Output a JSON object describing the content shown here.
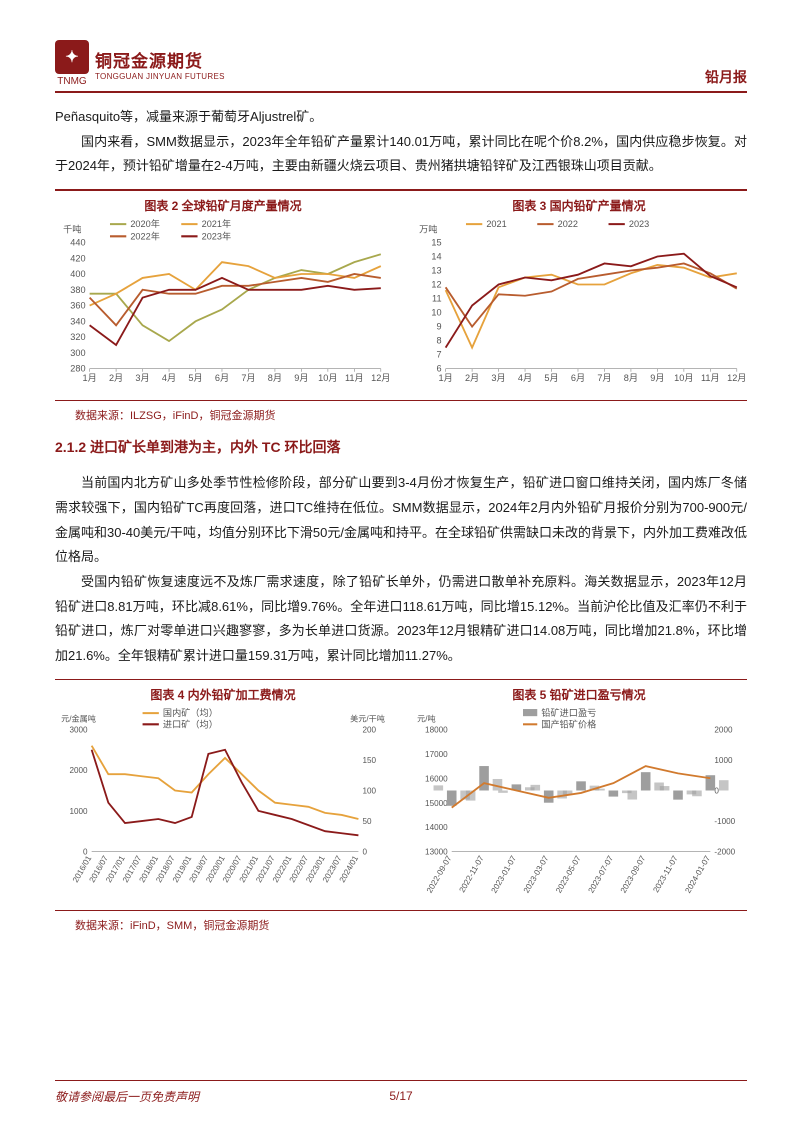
{
  "header": {
    "brand_cn": "铜冠金源期货",
    "brand_en": "TONGGUAN JINYUAN FUTURES",
    "tnmg": "TNMG",
    "report_type": "铅月报"
  },
  "intro_p1": "Peñasquito等，减量来源于葡萄牙Aljustrel矿。",
  "intro_p2": "国内来看，SMM数据显示，2023年全年铅矿产量累计140.01万吨，累计同比在呢个价8.2%，国内供应稳步恢复。对于2024年，预计铅矿增量在2-4万吨，主要由新疆火烧云项目、贵州猪拱塘铅锌矿及江西银珠山项目贡献。",
  "chart2": {
    "title": "图表 2 全球铅矿月度产量情况",
    "y_label": "千吨",
    "legend": [
      "2020年",
      "2021年",
      "2022年",
      "2023年"
    ],
    "legend_colors": [
      "#a8a84d",
      "#e6a23c",
      "#b85c2e",
      "#8b1a1a"
    ],
    "x_labels": [
      "1月",
      "2月",
      "3月",
      "4月",
      "5月",
      "6月",
      "7月",
      "8月",
      "9月",
      "10月",
      "11月",
      "12月"
    ],
    "y_min": 280,
    "y_max": 440,
    "y_step": 20,
    "series": {
      "2020": [
        375,
        375,
        335,
        315,
        340,
        355,
        380,
        395,
        405,
        400,
        415,
        425
      ],
      "2021": [
        360,
        375,
        395,
        400,
        380,
        415,
        410,
        395,
        400,
        400,
        395,
        410
      ],
      "2022": [
        370,
        335,
        380,
        375,
        375,
        385,
        385,
        390,
        395,
        390,
        400,
        395
      ],
      "2023": [
        335,
        310,
        370,
        380,
        380,
        395,
        380,
        380,
        380,
        385,
        380,
        382
      ]
    },
    "bg": "#ffffff",
    "font_size": 9
  },
  "chart3": {
    "title": "图表 3  国内铅矿产量情况",
    "y_label": "万吨",
    "legend": [
      "2021",
      "2022",
      "2023"
    ],
    "legend_colors": [
      "#e6a23c",
      "#b85c2e",
      "#8b1a1a"
    ],
    "x_labels": [
      "1月",
      "2月",
      "3月",
      "4月",
      "5月",
      "6月",
      "7月",
      "8月",
      "9月",
      "10月",
      "11月",
      "12月"
    ],
    "y_min": 6,
    "y_max": 15,
    "y_step": 1,
    "series": {
      "2021": [
        11.6,
        7.5,
        11.8,
        12.5,
        12.7,
        12.0,
        12.0,
        12.8,
        13.4,
        13.2,
        12.5,
        12.8
      ],
      "2022": [
        11.8,
        9.0,
        11.3,
        11.2,
        11.5,
        12.4,
        12.7,
        13.0,
        13.2,
        13.5,
        12.8,
        11.7
      ],
      "2023": [
        7.5,
        10.5,
        12.0,
        12.5,
        12.3,
        12.7,
        13.5,
        13.3,
        14.0,
        14.2,
        12.6,
        11.8
      ]
    },
    "bg": "#ffffff",
    "font_size": 9
  },
  "source1": "数据来源：ILZSG，iFinD，铜冠金源期货",
  "section_212": "2.1.2   进口矿长单到港为主，内外 TC  环比回落",
  "p212_1": "当前国内北方矿山多处季节性检修阶段，部分矿山要到3-4月份才恢复生产，铅矿进口窗口维持关闭，国内炼厂冬储需求较强下，国内铅矿TC再度回落，进口TC维持在低位。SMM数据显示，2024年2月内外铅矿月报价分别为700-900元/金属吨和30-40美元/干吨，均值分别环比下滑50元/金属吨和持平。在全球铅矿供需缺口未改的背景下，内外加工费难改低位格局。",
  "p212_2": "受国内铅矿恢复速度远不及炼厂需求速度，除了铅矿长单外，仍需进口散单补充原料。海关数据显示，2023年12月铅矿进口8.81万吨，环比减8.61%，同比增9.76%。全年进口118.61万吨，同比增15.12%。当前沪伦比值及汇率仍不利于铅矿进口，炼厂对零单进口兴趣寥寥，多为长单进口货源。2023年12月银精矿进口14.08万吨，同比增加21.8%，环比增加21.6%。全年银精矿累计进口量159.31万吨，累计同比增加11.27%。",
  "chart4": {
    "title": "图表 4  内外铅矿加工费情况",
    "y_label_left": "元/金属吨",
    "y_label_right": "美元/干吨",
    "legend": [
      "国内矿（均）",
      "进口矿（均）"
    ],
    "legend_colors": [
      "#e6a23c",
      "#8b1a1a"
    ],
    "x_labels": [
      "2016/01",
      "2016/07",
      "2017/01",
      "2017/07",
      "2018/01",
      "2018/07",
      "2019/01",
      "2019/07",
      "2020/01",
      "2020/07",
      "2021/01",
      "2021/07",
      "2022/01",
      "2022/07",
      "2023/01",
      "2023/07",
      "2024/01"
    ],
    "y_left_min": 0,
    "y_left_max": 3000,
    "y_left_step": 1000,
    "y_right_min": 0,
    "y_right_max": 200,
    "y_right_step": 50,
    "domestic": [
      2600,
      1900,
      1900,
      1850,
      1800,
      1500,
      1450,
      1900,
      2300,
      1900,
      1500,
      1200,
      1150,
      1100,
      950,
      900,
      800
    ],
    "import": [
      2500,
      1200,
      700,
      750,
      800,
      700,
      850,
      2400,
      2500,
      1700,
      1000,
      900,
      800,
      650,
      500,
      450,
      400
    ],
    "font_size": 8
  },
  "chart5": {
    "title": "图表 5  铅矿进口盈亏情况",
    "y_label_left": "元/吨",
    "legend": [
      "铅矿进口盈亏",
      "国产铅矿价格"
    ],
    "legend_colors": [
      "#9e9e9e",
      "#d17a2e"
    ],
    "x_labels": [
      "2022-09-07",
      "2022-11-07",
      "2023-01-07",
      "2023-03-07",
      "2023-05-07",
      "2023-07-07",
      "2023-09-07",
      "2023-11-07",
      "2024-01-07"
    ],
    "y_left_min": 13000,
    "y_left_max": 18000,
    "y_left_step": 1000,
    "y_right_min": -2000,
    "y_right_max": 2000,
    "y_right_step": 1000,
    "price": [
      14800,
      15800,
      15500,
      15200,
      15400,
      15800,
      16500,
      16200,
      16000
    ],
    "profit": [
      -500,
      800,
      200,
      -400,
      300,
      -200,
      600,
      -300,
      500
    ],
    "font_size": 8
  },
  "source2": "数据来源：iFinD，SMM，铜冠金源期货",
  "footer": {
    "disclaimer": "敬请参阅最后一页免责声明",
    "page": "5/17"
  }
}
